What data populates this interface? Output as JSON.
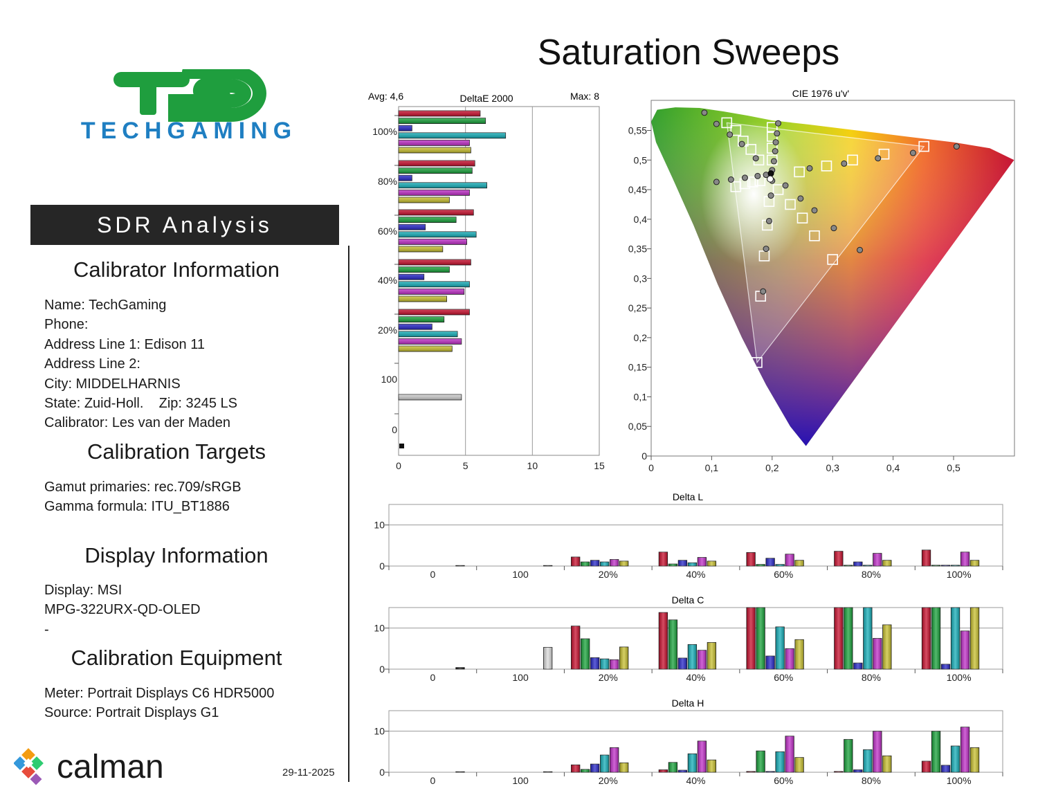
{
  "page": {
    "title": "Saturation Sweeps",
    "date": "29-11-2025"
  },
  "brand": {
    "logo_mark": "TG",
    "logo_text": "TECHGAMING",
    "logo_green": "#1f9e3e",
    "logo_blue": "#1f7fc2",
    "calman_text": "calman"
  },
  "left": {
    "banner": "SDR Analysis",
    "calibrator": {
      "heading": "Calibrator Information",
      "lines": [
        "Name: TechGaming",
        "Phone:",
        "Address Line 1: Edison 11",
        "Address Line 2:",
        "City: MIDDELHARNIS",
        "State: Zuid-Holl.    Zip: 3245 LS",
        "Calibrator: Les van der Maden"
      ]
    },
    "targets": {
      "heading": "Calibration Targets",
      "lines": [
        "Gamut primaries: rec.709/sRGB",
        "Gamma formula: ITU_BT1886"
      ]
    },
    "display": {
      "heading": "Display Information",
      "lines": [
        "Display: MSI",
        "MPG-322URX-QD-OLED",
        "-"
      ]
    },
    "equipment": {
      "heading": "Calibration Equipment",
      "lines": [
        "Meter: Portrait Displays C6 HDR5000",
        "Source: Portrait Displays G1"
      ]
    }
  },
  "colors": {
    "red": "#c8102e",
    "green": "#1aa33c",
    "blue": "#2828c8",
    "cyan": "#16aeb8",
    "magenta": "#c030c8",
    "yellow": "#c8c030",
    "gray": "#b0b0b0",
    "black": "#111111"
  },
  "chart_data": [
    {
      "type": "bar",
      "orientation": "horizontal",
      "title": "DeltaE 2000",
      "avg_label": "Avg: 4,6",
      "max_label": "Max: 8",
      "xlim": [
        0,
        15
      ],
      "x_ticks": [
        "0",
        "5",
        "10",
        "15"
      ],
      "categories": [
        "100%",
        "80%",
        "60%",
        "40%",
        "20%",
        "100",
        "0"
      ],
      "series_names": [
        "red",
        "green",
        "blue",
        "cyan",
        "magenta",
        "yellow"
      ],
      "values": {
        "100%": [
          6.1,
          6.5,
          1.0,
          8.0,
          5.3,
          5.4
        ],
        "80%": [
          5.7,
          5.5,
          1.0,
          6.6,
          5.3,
          3.8
        ],
        "60%": [
          5.6,
          4.3,
          2.0,
          5.8,
          5.1,
          3.3
        ],
        "40%": [
          5.4,
          3.8,
          1.9,
          5.3,
          4.9,
          3.6
        ],
        "20%": [
          5.3,
          3.4,
          2.5,
          4.4,
          4.7,
          4.0
        ],
        "100": [
          4.7
        ],
        "0": [
          0.2
        ]
      }
    },
    {
      "type": "scatter",
      "title": "CIE 1976 u'v'",
      "xlim": [
        0,
        0.6
      ],
      "ylim": [
        0,
        0.6
      ],
      "x_ticks": [
        "0",
        "0,1",
        "0,2",
        "0,3",
        "0,4",
        "0,5"
      ],
      "y_ticks": [
        "0",
        "0,05",
        "0,1",
        "0,15",
        "0,2",
        "0,25",
        "0,3",
        "0,35",
        "0,4",
        "0,45",
        "0,5",
        "0,55"
      ],
      "gamut": {
        "red": [
          0.451,
          0.523
        ],
        "green": [
          0.125,
          0.563
        ],
        "blue": [
          0.175,
          0.158
        ]
      },
      "white_point": [
        0.198,
        0.468
      ],
      "targets": [
        [
          0.451,
          0.523
        ],
        [
          0.385,
          0.51
        ],
        [
          0.333,
          0.5
        ],
        [
          0.29,
          0.49
        ],
        [
          0.245,
          0.48
        ],
        [
          0.125,
          0.563
        ],
        [
          0.14,
          0.55
        ],
        [
          0.152,
          0.532
        ],
        [
          0.165,
          0.518
        ],
        [
          0.178,
          0.5
        ],
        [
          0.175,
          0.158
        ],
        [
          0.181,
          0.27
        ],
        [
          0.187,
          0.338
        ],
        [
          0.192,
          0.39
        ],
        [
          0.195,
          0.43
        ],
        [
          0.14,
          0.455
        ],
        [
          0.155,
          0.46
        ],
        [
          0.168,
          0.463
        ],
        [
          0.18,
          0.465
        ],
        [
          0.3,
          0.332
        ],
        [
          0.27,
          0.372
        ],
        [
          0.25,
          0.402
        ],
        [
          0.23,
          0.425
        ],
        [
          0.21,
          0.45
        ],
        [
          0.2,
          0.555
        ],
        [
          0.2,
          0.54
        ],
        [
          0.2,
          0.52
        ],
        [
          0.2,
          0.5
        ]
      ],
      "measured": [
        [
          0.505,
          0.523
        ],
        [
          0.433,
          0.512
        ],
        [
          0.375,
          0.503
        ],
        [
          0.319,
          0.494
        ],
        [
          0.262,
          0.486
        ],
        [
          0.088,
          0.58
        ],
        [
          0.108,
          0.561
        ],
        [
          0.13,
          0.543
        ],
        [
          0.15,
          0.527
        ],
        [
          0.173,
          0.503
        ],
        [
          0.185,
          0.278
        ],
        [
          0.19,
          0.35
        ],
        [
          0.195,
          0.397
        ],
        [
          0.198,
          0.44
        ],
        [
          0.2,
          0.465
        ],
        [
          0.108,
          0.463
        ],
        [
          0.132,
          0.467
        ],
        [
          0.155,
          0.47
        ],
        [
          0.176,
          0.473
        ],
        [
          0.19,
          0.475
        ],
        [
          0.345,
          0.348
        ],
        [
          0.302,
          0.385
        ],
        [
          0.27,
          0.415
        ],
        [
          0.247,
          0.435
        ],
        [
          0.222,
          0.457
        ],
        [
          0.21,
          0.562
        ],
        [
          0.208,
          0.545
        ],
        [
          0.206,
          0.53
        ],
        [
          0.205,
          0.515
        ],
        [
          0.203,
          0.498
        ],
        [
          0.2,
          0.483
        ]
      ]
    },
    {
      "type": "bar",
      "title": "Delta L",
      "ylim": [
        0,
        15
      ],
      "y_ticks": [
        "0",
        "10"
      ],
      "categories": [
        "0",
        "100",
        "20%",
        "40%",
        "60%",
        "80%",
        "100%"
      ],
      "values": {
        "0": [
          0.1
        ],
        "100": [
          0.1
        ],
        "20%": [
          2.2,
          1.0,
          1.4,
          1.0,
          1.6,
          1.2
        ],
        "40%": [
          3.4,
          0.5,
          1.4,
          0.8,
          2.1,
          1.2
        ],
        "60%": [
          3.3,
          0.4,
          1.9,
          0.4,
          2.9,
          1.4
        ],
        "80%": [
          3.6,
          0.2,
          1.0,
          0.2,
          3.1,
          1.4
        ],
        "100%": [
          3.9,
          0.2,
          0.2,
          0.2,
          3.4,
          1.4
        ]
      }
    },
    {
      "type": "bar",
      "title": "Delta C",
      "ylim": [
        0,
        15
      ],
      "y_ticks": [
        "0",
        "10"
      ],
      "categories": [
        "0",
        "100",
        "20%",
        "40%",
        "60%",
        "80%",
        "100%"
      ],
      "values": {
        "0": [
          0.4
        ],
        "100": [
          5.3
        ],
        "20%": [
          10.5,
          7.4,
          2.8,
          2.5,
          2.3,
          5.4
        ],
        "40%": [
          13.8,
          12.0,
          2.7,
          6.0,
          4.6,
          6.5
        ],
        "60%": [
          15.0,
          15.0,
          3.2,
          10.3,
          5.0,
          7.2
        ],
        "80%": [
          15.0,
          15.0,
          1.5,
          15.0,
          7.5,
          10.8
        ],
        "100%": [
          15.0,
          15.0,
          1.2,
          15.0,
          9.3,
          15.0
        ]
      }
    },
    {
      "type": "bar",
      "title": "Delta H",
      "ylim": [
        0,
        15
      ],
      "y_ticks": [
        "0",
        "10"
      ],
      "categories": [
        "0",
        "100",
        "20%",
        "40%",
        "60%",
        "80%",
        "100%"
      ],
      "values": {
        "0": [
          0.1
        ],
        "100": [
          0.1
        ],
        "20%": [
          1.8,
          0.7,
          2.0,
          4.2,
          6.0,
          2.3
        ],
        "40%": [
          0.6,
          2.4,
          0.5,
          4.5,
          7.6,
          3.0
        ],
        "60%": [
          0.2,
          5.2,
          0.2,
          5.0,
          8.8,
          3.6
        ],
        "80%": [
          0.2,
          8.0,
          0.6,
          5.5,
          10.0,
          4.0
        ],
        "100%": [
          2.7,
          10.0,
          1.7,
          6.4,
          11.0,
          6.0
        ]
      }
    }
  ]
}
